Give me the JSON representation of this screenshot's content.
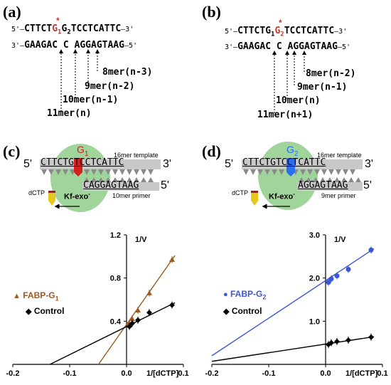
{
  "panel_a": {
    "label": "(a)",
    "top_prefix": "5'—",
    "top_seq_left": "CTTCT",
    "top_mod": "G",
    "top_mod_sub": "1",
    "top_star": "*",
    "top_g2": "G",
    "top_g2_sub": "2",
    "top_seq_right": "TCCTCATTC",
    "top_suffix": "—3'",
    "bottom_prefix": "3'—",
    "bottom_seq_left": "GAAGAC",
    "bottom_mid": "C",
    "bottom_seq_right": "AGGAGTAAG",
    "bottom_suffix": "—5'",
    "labels": [
      "8mer(n-3)",
      "9mer(n-2)",
      "10mer(n-1)",
      "11mer(n)"
    ]
  },
  "panel_b": {
    "label": "(b)",
    "top_prefix": "5'—",
    "top_seq_left": "CTTCTG",
    "top_g1": "G",
    "top_g1_sub": "1",
    "top_mod": "G",
    "top_mod_sub": "2",
    "top_star": "*",
    "top_seq_right": "TCCTCATTC",
    "top_suffix": "—3'",
    "bottom_prefix": "3'—",
    "bottom_seq_left": "GAAGAC",
    "bottom_mid": "C",
    "bottom_seq_right": "AGGAGTAAG",
    "bottom_suffix": "—5'",
    "labels": [
      "8mer(n-2)",
      "9mer(n-1)",
      "10mer(n)",
      "11mer(n+1)"
    ]
  },
  "panel_c": {
    "label": "(c)",
    "mod": "G",
    "mod_sub": "1",
    "template_label": "16mer template",
    "five": "5'",
    "template_seq": "CTTCTGTCCTCATTC",
    "three": "3'",
    "primer_seq": "CAGGAGTAAG",
    "primer_five": "5'",
    "primer_label": "10mer primer",
    "dctp": "dCTP",
    "enzyme": "Kf-exo",
    "enzyme_sup": "-"
  },
  "panel_d": {
    "label": "(d)",
    "mod": "G",
    "mod_sub": "2",
    "template_label": "16mer template",
    "five": "5'",
    "template_seq": "CTTCTGTCCTCATTC",
    "three": "3'",
    "primer_seq": "AGGAGTAAG",
    "primer_five": "5'",
    "primer_label": "9mer primer",
    "dctp": "dCTP",
    "enzyme": "Kf-exo",
    "enzyme_sup": "-"
  },
  "colors": {
    "fabp_g1": "#9c5a1e",
    "fabp_g2": "#3b57d6",
    "control": "#000000",
    "red_mod": "#d2201c",
    "blue_mod": "#2a6ff0",
    "green_blob": "#9fd49a"
  },
  "chart_data": [
    {
      "type": "scatter",
      "ylabel": "1/V",
      "xlabel": "1/[dCTP]",
      "xlim": [
        -0.2,
        0.1
      ],
      "ylim": [
        0,
        1.2
      ],
      "xticks": [
        "-0.2",
        "-0.1",
        "0.0",
        "0.1"
      ],
      "yticks": [
        "0.4",
        "0.8",
        "1.2"
      ],
      "series": [
        {
          "name": "FABP-G",
          "name_sub": "1",
          "marker": "triangle",
          "x": [
            0.005,
            0.01,
            0.02,
            0.04,
            0.08
          ],
          "y": [
            0.38,
            0.42,
            0.5,
            0.66,
            0.97
          ],
          "fit": {
            "slope": 7.5,
            "intercept": 0.37
          }
        },
        {
          "name": "Control",
          "marker": "diamond",
          "x": [
            0.005,
            0.01,
            0.02,
            0.04,
            0.08
          ],
          "y": [
            0.35,
            0.38,
            0.41,
            0.48,
            0.55
          ],
          "fit": {
            "slope": 2.6,
            "intercept": 0.35
          }
        }
      ]
    },
    {
      "type": "scatter",
      "ylabel": "1/V",
      "xlabel": "1/[dCTP]",
      "xlim": [
        -0.2,
        0.1
      ],
      "ylim": [
        0,
        3.0
      ],
      "xticks": [
        "-0.2",
        "-0.1",
        "0.0",
        "0.1"
      ],
      "yticks": [
        "1.0",
        "2.0",
        "3.0"
      ],
      "series": [
        {
          "name": "FABP-G",
          "name_sub": "2",
          "marker": "circle",
          "x": [
            0.005,
            0.01,
            0.02,
            0.04,
            0.08
          ],
          "y": [
            1.9,
            1.98,
            2.05,
            2.2,
            2.65
          ],
          "fit": {
            "slope": 8.7,
            "intercept": 1.94
          }
        },
        {
          "name": "Control",
          "marker": "diamond",
          "x": [
            0.005,
            0.01,
            0.02,
            0.04,
            0.08
          ],
          "y": [
            0.46,
            0.5,
            0.53,
            0.56,
            0.63
          ],
          "fit": {
            "slope": 2.0,
            "intercept": 0.47
          }
        }
      ]
    }
  ]
}
